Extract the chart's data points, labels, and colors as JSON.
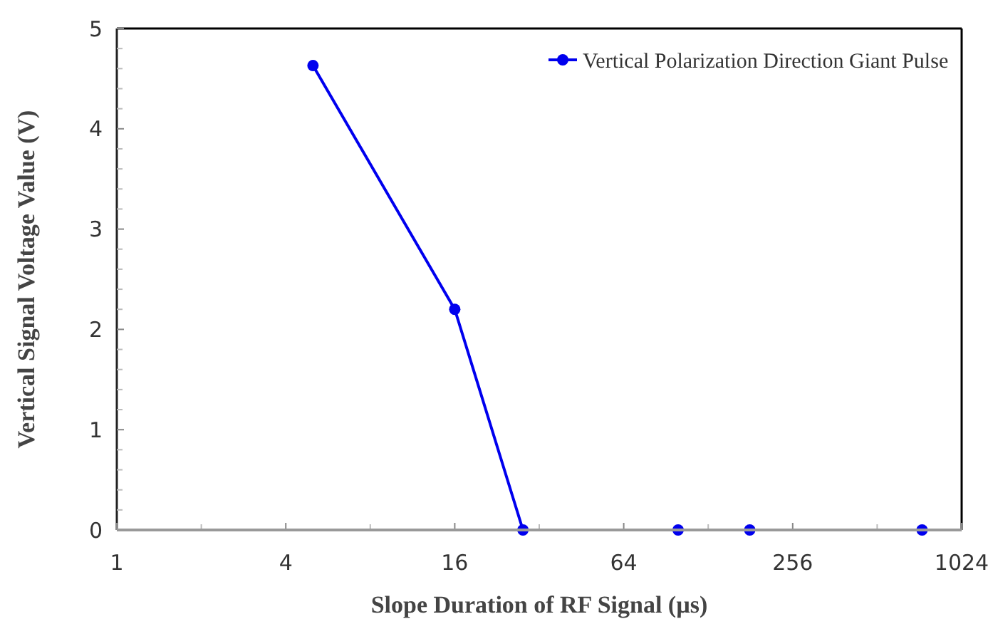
{
  "chart_data": {
    "type": "line",
    "xlabel": "Slope Duration of RF Signal (µs)",
    "ylabel": "Vertical Signal Voltage Value (V)",
    "log": "x",
    "x": [
      5,
      16,
      28,
      100,
      180,
      740
    ],
    "series": [
      {
        "name": "Vertical Polarization Direction Giant Pulse",
        "color": "#0000ee",
        "values": [
          4.63,
          2.2,
          0,
          0,
          0,
          0
        ]
      }
    ],
    "xlim": [
      1,
      1024
    ],
    "xticks": [
      1,
      4,
      16,
      64,
      256,
      1024
    ],
    "ylim": [
      0,
      5
    ],
    "yticks": [
      0,
      1,
      2,
      3,
      4,
      5
    ],
    "grid": false,
    "legend": "top right",
    "marker": "circle",
    "line_style": "solid"
  }
}
